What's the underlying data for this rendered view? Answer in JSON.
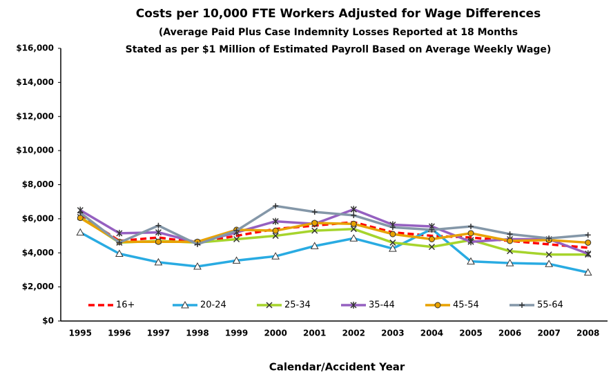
{
  "chart_data": {
    "type": "line",
    "title": "Costs per 10,000 FTE Workers Adjusted for Wage Differences",
    "subtitle": [
      "(Average Paid Plus Case Indemnity Losses Reported at 18 Months",
      "Stated as per $1 Million of Estimated Payroll Based on Average Weekly Wage)"
    ],
    "x_label": "Calendar/Accident Year",
    "categories": [
      "1995",
      "1996",
      "1997",
      "1998",
      "1999",
      "2000",
      "2001",
      "2002",
      "2003",
      "2004",
      "2005",
      "2006",
      "2007",
      "2008"
    ],
    "ylim": [
      0,
      16000
    ],
    "yticks": [
      {
        "value": 0,
        "label": "$0"
      },
      {
        "value": 2000,
        "label": "$2,000"
      },
      {
        "value": 4000,
        "label": "$4,000"
      },
      {
        "value": 6000,
        "label": "$6,000"
      },
      {
        "value": 8000,
        "label": "$8,000"
      },
      {
        "value": 10000,
        "label": "$10,000"
      },
      {
        "value": 12000,
        "label": "$12,000"
      },
      {
        "value": 14000,
        "label": "$14,000"
      },
      {
        "value": 16000,
        "label": "$16,000"
      }
    ],
    "grid": false,
    "legend": "bottom",
    "series": [
      {
        "name": "16+",
        "color": "#ff0000",
        "marker": "none",
        "dashed": true,
        "values": [
          6200,
          4700,
          4900,
          4600,
          5000,
          5400,
          5600,
          5800,
          5200,
          5000,
          4900,
          4700,
          4500,
          4300
        ]
      },
      {
        "name": "20-24",
        "color": "#29abe2",
        "marker": "triangle",
        "dashed": false,
        "values": [
          5200,
          3950,
          3450,
          3200,
          3550,
          3800,
          4400,
          4850,
          4250,
          5400,
          3500,
          3400,
          3350,
          2850
        ]
      },
      {
        "name": "25-34",
        "color": "#a6d42c",
        "marker": "x",
        "dashed": false,
        "values": [
          6100,
          4600,
          4700,
          4600,
          4800,
          5000,
          5300,
          5400,
          4600,
          4350,
          4750,
          4100,
          3900,
          3900
        ]
      },
      {
        "name": "35-44",
        "color": "#9560c0",
        "marker": "star",
        "dashed": false,
        "values": [
          6500,
          5150,
          5200,
          4600,
          5200,
          5850,
          5700,
          6550,
          5650,
          5550,
          4650,
          4800,
          4800,
          3950
        ]
      },
      {
        "name": "45-54",
        "color": "#e8a202",
        "marker": "circle",
        "dashed": false,
        "values": [
          6050,
          4650,
          4650,
          4650,
          5350,
          5300,
          5750,
          5700,
          5100,
          4800,
          5150,
          4700,
          4750,
          4600
        ]
      },
      {
        "name": "55-64",
        "color": "#8497a8",
        "marker": "plus",
        "dashed": false,
        "values": [
          6350,
          4600,
          5600,
          4500,
          5300,
          6750,
          6400,
          6200,
          5500,
          5350,
          5550,
          5100,
          4850,
          5050
        ]
      }
    ]
  }
}
